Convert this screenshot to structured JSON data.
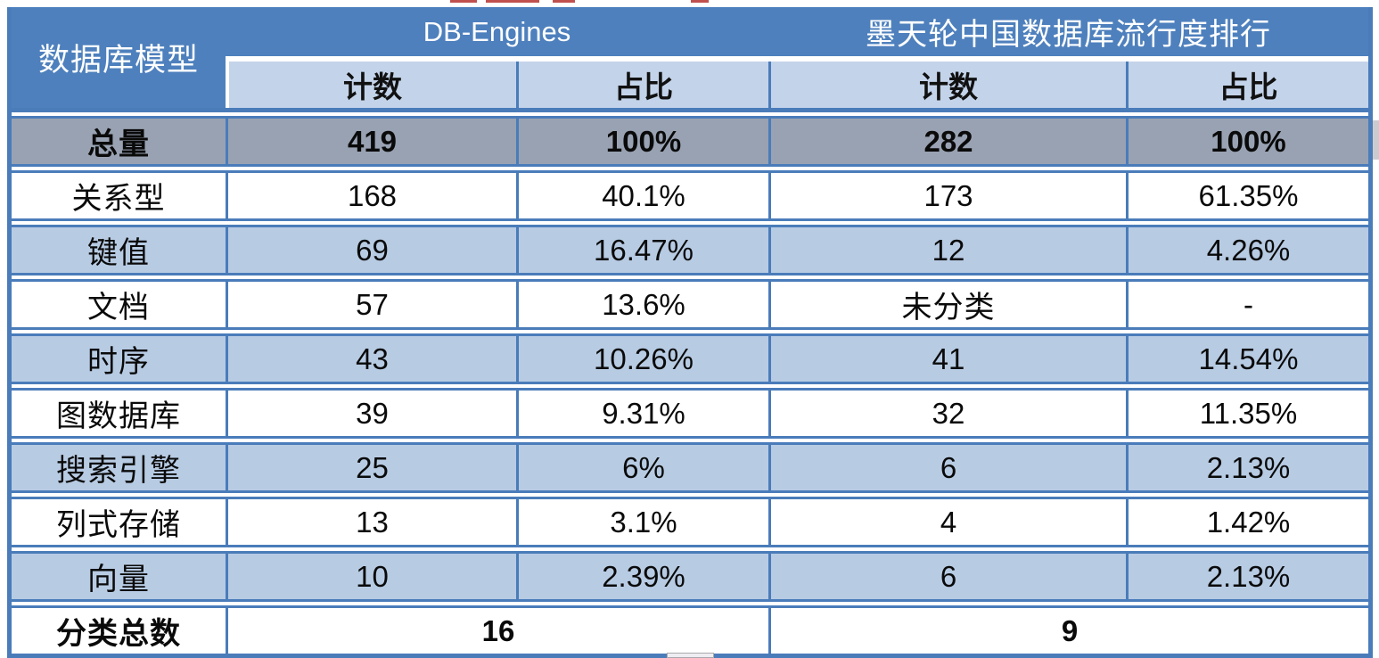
{
  "colors": {
    "header_blue": "#4E80BD",
    "subheader_blue": "#C3D3E9",
    "alt_row_blue": "#B7CBE3",
    "total_gray": "#98A2B2",
    "border_blue": "#4A7CBA",
    "scrollbar_gray": "#CBCBCF",
    "artifact_red": "#C0504D"
  },
  "chart_data": {
    "type": "table",
    "corner_header": "数据库模型",
    "column_groups": [
      {
        "label": "DB-Engines",
        "span": 2
      },
      {
        "label": "墨天轮中国数据库流行度排行",
        "span": 2
      }
    ],
    "sub_columns": [
      "计数",
      "占比",
      "计数",
      "占比"
    ],
    "total_row": {
      "label": "总量",
      "values": [
        "419",
        "100%",
        "282",
        "100%"
      ]
    },
    "rows": [
      {
        "label": "关系型",
        "values": [
          "168",
          "40.1%",
          "173",
          "61.35%"
        ]
      },
      {
        "label": "键值",
        "values": [
          "69",
          "16.47%",
          "12",
          "4.26%"
        ]
      },
      {
        "label": "文档",
        "values": [
          "57",
          "13.6%",
          "未分类",
          "-"
        ]
      },
      {
        "label": "时序",
        "values": [
          "43",
          "10.26%",
          "41",
          "14.54%"
        ]
      },
      {
        "label": "图数据库",
        "values": [
          "39",
          "9.31%",
          "32",
          "11.35%"
        ]
      },
      {
        "label": "搜索引擎",
        "values": [
          "25",
          "6%",
          "6",
          "2.13%"
        ]
      },
      {
        "label": "列式存储",
        "values": [
          "13",
          "3.1%",
          "4",
          "1.42%"
        ]
      },
      {
        "label": "向量",
        "values": [
          "10",
          "2.39%",
          "6",
          "2.13%"
        ]
      }
    ],
    "footer_row": {
      "label": "分类总数",
      "values": [
        "16",
        "9"
      ]
    }
  }
}
